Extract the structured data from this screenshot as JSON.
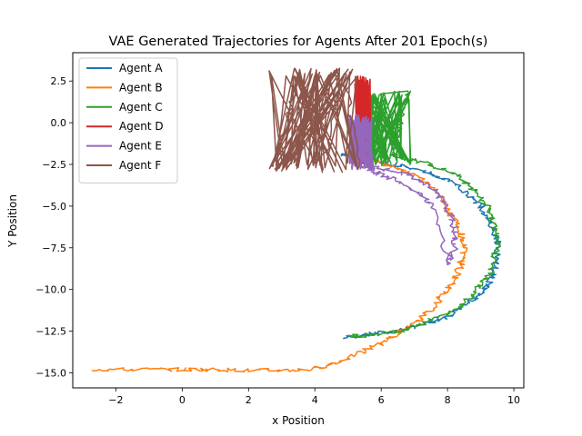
{
  "chart_data": {
    "type": "line",
    "title": "VAE Generated Trajectories for Agents After 201 Epoch(s)",
    "xlabel": "x Position",
    "ylabel": "Y Position",
    "xlim": [
      -3.3,
      10.3
    ],
    "ylim": [
      -15.9,
      4.2
    ],
    "x_ticks": [
      -2,
      0,
      2,
      4,
      6,
      8,
      10
    ],
    "y_ticks": [
      2.5,
      0.0,
      -2.5,
      -5.0,
      -7.5,
      -10.0,
      -12.5,
      -15.0
    ],
    "x_tick_labels": [
      "−2",
      "0",
      "2",
      "4",
      "6",
      "8",
      "10"
    ],
    "y_tick_labels": [
      "2.5",
      "0.0",
      "−2.5",
      "−5.0",
      "−7.5",
      "−10.0",
      "−12.5",
      "−15.0"
    ],
    "grid": false,
    "legend_position": "upper-left",
    "series": [
      {
        "name": "Agent A",
        "color": "#1f77b4",
        "x": [
          4.9,
          5.6,
          6.4,
          7.1,
          7.8,
          8.3,
          8.8,
          9.2,
          9.4,
          9.5,
          9.5,
          9.3,
          9.0,
          8.6,
          8.1,
          7.4,
          6.7,
          5.9,
          5.2,
          4.8
        ],
        "y": [
          -12.9,
          -12.7,
          -12.5,
          -12.2,
          -11.8,
          -11.3,
          -10.6,
          -9.8,
          -9.0,
          -8.0,
          -7.0,
          -6.0,
          -5.0,
          -4.2,
          -3.5,
          -3.0,
          -2.6,
          -2.3,
          -2.0,
          -1.9
        ]
      },
      {
        "name": "Agent B",
        "color": "#ff7f0e",
        "x": [
          -2.7,
          -1.5,
          0.0,
          1.0,
          2.0,
          3.0,
          3.9,
          4.8,
          5.6,
          6.3,
          6.9,
          7.4,
          7.8,
          8.2,
          8.4,
          8.5,
          8.4,
          8.1,
          7.8,
          7.3,
          6.6,
          5.9,
          5.2
        ],
        "y": [
          -14.8,
          -14.8,
          -14.8,
          -14.8,
          -14.85,
          -14.85,
          -14.8,
          -14.3,
          -13.6,
          -12.9,
          -12.2,
          -11.4,
          -10.5,
          -9.5,
          -8.5,
          -7.5,
          -6.5,
          -5.5,
          -4.5,
          -3.5,
          -2.8,
          -2.3,
          -2.0
        ]
      },
      {
        "name": "Agent C",
        "color": "#2ca02c",
        "x": [
          5.1,
          5.8,
          6.5,
          7.2,
          7.8,
          8.4,
          8.8,
          9.2,
          9.4,
          9.5,
          9.4,
          9.2,
          8.8,
          8.3,
          7.6,
          6.9,
          6.3,
          6.6,
          6.8
        ],
        "y": [
          -12.8,
          -12.7,
          -12.5,
          -12.1,
          -11.6,
          -11.0,
          -10.2,
          -9.3,
          -8.3,
          -7.2,
          -6.1,
          -5.0,
          -4.0,
          -3.2,
          -2.6,
          -2.2,
          -1.9,
          0.2,
          1.9
        ],
        "oscillation": {
          "x_min": 5.4,
          "x_max": 6.9,
          "y_min": -2.6,
          "y_max": 1.9
        }
      },
      {
        "name": "Agent D",
        "color": "#d62728",
        "x": [
          5.3,
          5.4,
          5.5,
          5.6
        ],
        "y": [
          -2.0,
          -0.5,
          1.0,
          2.5
        ],
        "oscillation": {
          "x_min": 5.2,
          "x_max": 5.7,
          "y_min": -2.5,
          "y_max": 2.8
        }
      },
      {
        "name": "Agent E",
        "color": "#9467bd",
        "x": [
          5.4,
          6.1,
          6.8,
          7.4,
          7.8,
          8.1,
          8.2,
          8.2,
          8.0,
          7.6,
          7.1,
          6.5,
          5.9,
          5.4
        ],
        "y": [
          -2.6,
          -2.8,
          -3.1,
          -3.7,
          -4.5,
          -5.5,
          -6.5,
          -7.5,
          -8.5,
          -5.0,
          -4.2,
          -3.5,
          -3.0,
          -2.6
        ],
        "oscillation": {
          "x_min": 5.0,
          "x_max": 5.8,
          "y_min": -2.8,
          "y_max": 0.5
        }
      },
      {
        "name": "Agent F",
        "color": "#8c564b",
        "x": [
          2.8,
          3.5,
          4.2,
          4.9,
          5.3
        ],
        "y": [
          -2.8,
          2.9,
          -2.8,
          2.9,
          -2.8
        ],
        "oscillation": {
          "x_min": 2.6,
          "x_max": 5.3,
          "y_min": -3.0,
          "y_max": 3.3
        }
      }
    ]
  }
}
